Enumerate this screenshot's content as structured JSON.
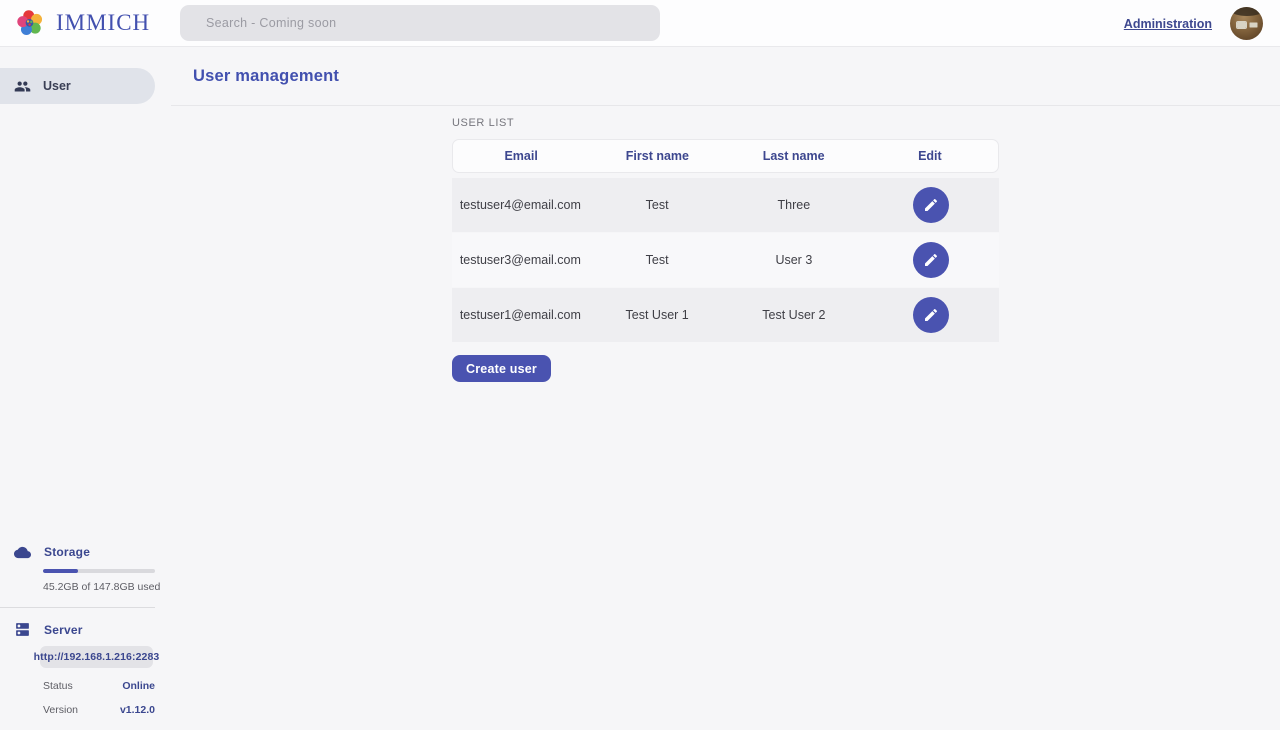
{
  "brand": {
    "name": "IMMICH"
  },
  "nav": {
    "search_placeholder": "Search - Coming soon",
    "admin_link": "Administration"
  },
  "sidebar": {
    "items": [
      {
        "label": "User",
        "selected": true
      }
    ],
    "storage": {
      "title": "Storage",
      "percent": 31,
      "usage_text": "45.2GB of 147.8GB used"
    },
    "server": {
      "title": "Server",
      "url": "http://192.168.1.216:2283",
      "rows": [
        {
          "label": "Status",
          "value": "Online"
        },
        {
          "label": "Version",
          "value": "v1.12.0"
        }
      ]
    }
  },
  "main": {
    "title": "User management",
    "section_label": "USER LIST",
    "table": {
      "headers": [
        "Email",
        "First name",
        "Last name",
        "Edit"
      ],
      "rows": [
        [
          "testuser4@email.com",
          "Test",
          "Three"
        ],
        [
          "testuser3@email.com",
          "Test",
          "User 3"
        ],
        [
          "testuser1@email.com",
          "Test User 1",
          "Test User 2"
        ]
      ]
    },
    "create_button": "Create user"
  },
  "colors": {
    "accent": "#4250af",
    "button": "#4a53b0",
    "online_status": "#3b478f"
  }
}
